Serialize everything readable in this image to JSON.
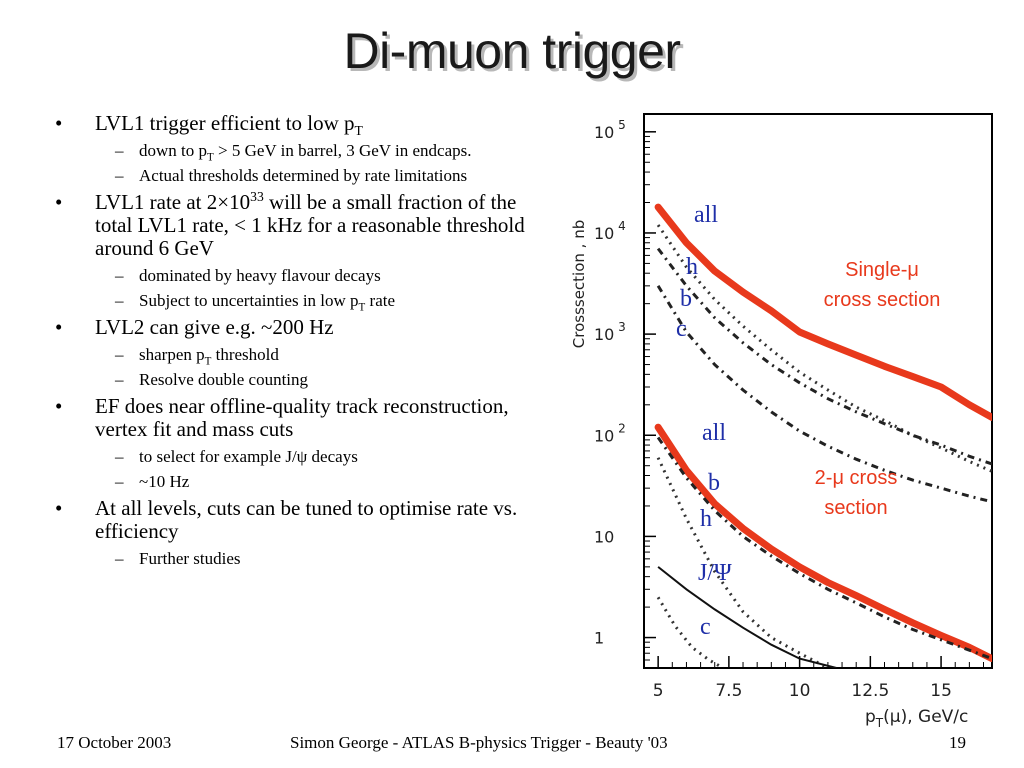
{
  "slide": {
    "title": "Di-muon trigger",
    "footer": {
      "date": "17 October 2003",
      "center": "Simon George - ATLAS B-physics Trigger - Beauty '03",
      "page": "19"
    }
  },
  "bullets": {
    "b1": {
      "text": "LVL1 trigger efficient to low p",
      "sub": "T"
    },
    "b1s1": {
      "pre": "down to p",
      "sub": "T",
      "post": " > 5 GeV in barrel, 3 GeV in endcaps."
    },
    "b1s2": {
      "text": "Actual thresholds determined by rate limitations"
    },
    "b2": {
      "pre": "LVL1 rate at 2×10",
      "sup": "33",
      "post": " will be a small fraction of the total LVL1 rate,  < 1 kHz for a reasonable threshold around 6 GeV"
    },
    "b2s1": {
      "text": "dominated by heavy flavour decays"
    },
    "b2s2": {
      "pre": "Subject to uncertainties in low p",
      "sub": "T",
      "post": " rate"
    },
    "b3": {
      "text": "LVL2 can give e.g. ~200 Hz"
    },
    "b3s1": {
      "pre": "sharpen p",
      "sub": "T",
      "post": " threshold"
    },
    "b3s2": {
      "text": "Resolve double counting"
    },
    "b4": {
      "text": "EF does near offline-quality track reconstruction, vertex fit and mass cuts"
    },
    "b4s1": {
      "text": "to select for example J/ψ decays"
    },
    "b4s2": {
      "text": "~10 Hz"
    },
    "b5": {
      "text": "At all levels, cuts can be tuned to optimise rate vs. efficiency"
    },
    "b5s1": {
      "text": "Further studies"
    }
  },
  "chart_data": {
    "type": "line",
    "log_y": true,
    "xlim": [
      4.5,
      16.8
    ],
    "ylim": [
      0.5,
      150000
    ],
    "ylabel": "Crosssection , nb",
    "xlabel_main": "p",
    "xlabel_sub": "T",
    "xlabel_rest": "(μ), GeV/c",
    "x_ticks": [
      5,
      7.5,
      10,
      12.5,
      15
    ],
    "x_tick_labels": [
      "5",
      "7.5",
      "10",
      "12.5",
      "15"
    ],
    "y_ticks": [
      {
        "base": "10",
        "exp": "5",
        "value": 100000
      },
      {
        "base": "10",
        "exp": "4",
        "value": 10000
      },
      {
        "base": "10",
        "exp": "3",
        "value": 1000
      },
      {
        "base": "10",
        "exp": "2",
        "value": 100
      },
      {
        "base": "10",
        "exp": "",
        "value": 10
      },
      {
        "base": "1",
        "exp": "",
        "value": 1
      }
    ],
    "annotations": {
      "single": "Single-μ\ncross section",
      "dimuon": "2-μ cross\nsection",
      "single_labels": [
        "all",
        "h",
        "b",
        "c"
      ],
      "dimuon_labels": [
        "all",
        "b",
        "h",
        "J/Ψ",
        "c"
      ]
    },
    "colors": {
      "highlight": "#e8391c",
      "label": "#1f2fa8",
      "annotation": "#e8391c"
    },
    "series": [
      {
        "style": "highlight",
        "x": [
          5,
          6,
          7,
          8,
          9,
          10,
          11,
          12,
          13,
          14,
          15,
          16,
          16.8
        ],
        "y": [
          18000,
          8000,
          4200,
          2600,
          1700,
          1050,
          800,
          620,
          480,
          380,
          300,
          200,
          150
        ]
      },
      {
        "style": "dots",
        "x": [
          5,
          6,
          7,
          8,
          9,
          10,
          11,
          12,
          13,
          14,
          15,
          16,
          16.8
        ],
        "y": [
          12000,
          4600,
          2200,
          1200,
          700,
          420,
          280,
          190,
          140,
          100,
          75,
          55,
          44
        ]
      },
      {
        "style": "dashdot",
        "x": [
          5,
          6,
          7,
          8,
          9,
          10,
          11,
          12,
          13,
          14,
          15,
          16,
          16.8
        ],
        "y": [
          7000,
          3000,
          1450,
          820,
          500,
          330,
          230,
          170,
          130,
          100,
          80,
          62,
          52
        ]
      },
      {
        "style": "dashdot",
        "x": [
          5,
          6,
          7,
          8,
          9,
          10,
          11,
          12,
          13,
          14,
          15,
          16,
          16.8
        ],
        "y": [
          3000,
          1050,
          500,
          280,
          170,
          110,
          78,
          58,
          45,
          36,
          30,
          25,
          22
        ]
      },
      {
        "style": "highlight",
        "x": [
          5,
          6,
          7,
          8,
          9,
          10,
          11,
          12,
          13,
          14,
          15,
          16,
          16.8
        ],
        "y": [
          120,
          45,
          21,
          12,
          7.5,
          5.0,
          3.5,
          2.6,
          1.9,
          1.4,
          1.05,
          0.8,
          0.62
        ]
      },
      {
        "style": "dashdot",
        "x": [
          5,
          6,
          7,
          8,
          9,
          10,
          11,
          12,
          13,
          14,
          15,
          16,
          16.8
        ],
        "y": [
          95,
          38,
          18,
          10,
          6.4,
          4.3,
          3.0,
          2.2,
          1.6,
          1.2,
          0.95,
          0.75,
          0.62
        ]
      },
      {
        "style": "dots",
        "x": [
          5,
          6,
          7,
          8,
          9,
          10,
          11
        ],
        "y": [
          60,
          15,
          4.5,
          1.8,
          1.0,
          0.7,
          0.5
        ]
      },
      {
        "style": "solid",
        "x": [
          5,
          6,
          7,
          8,
          9,
          10,
          11.3
        ],
        "y": [
          5.0,
          3.0,
          1.9,
          1.25,
          0.85,
          0.62,
          0.5
        ]
      },
      {
        "style": "dots",
        "x": [
          5,
          5.6,
          6.2,
          6.8,
          7.3
        ],
        "y": [
          2.5,
          1.3,
          0.8,
          0.6,
          0.5
        ]
      }
    ]
  }
}
